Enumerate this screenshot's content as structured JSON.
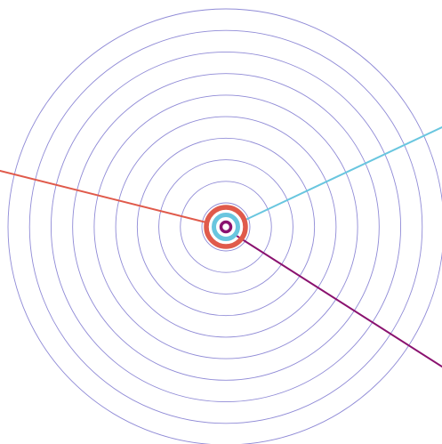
{
  "diagram": {
    "ring_count": 10,
    "colors": {
      "background": "#ffffff",
      "rings": "#8f8ad6",
      "outer_target_ring": "#e05a4b",
      "middle_target_ring": "#69c6df",
      "inner_target_ring": "#8a126f",
      "line_left": "#e05a4b",
      "line_right": "#69c6df",
      "line_bottom_right": "#8a126f"
    },
    "lines": [
      {
        "name": "red-line",
        "color_key": "line_left"
      },
      {
        "name": "blue-line",
        "color_key": "line_right"
      },
      {
        "name": "purple-line",
        "color_key": "line_bottom_right"
      }
    ]
  }
}
